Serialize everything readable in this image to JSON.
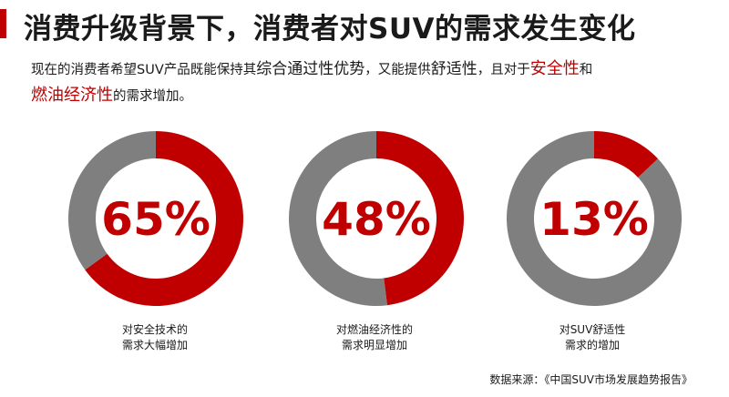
{
  "header": {
    "title": "消费升级背景下，消费者对SUV的需求发生变化"
  },
  "subtitle": {
    "part1": "现在的消费者希望SUV产品既能保持其",
    "part2": "综合通过性优势",
    "part3": "，又能提供",
    "part4": "舒适性",
    "part5": "，且对于",
    "part6": "安全性",
    "part7": "和",
    "part8": "燃油经济性",
    "part9": "的需求增加。"
  },
  "colors": {
    "accent": "#c00000",
    "remainder": "#7f7f7f"
  },
  "chart_data": {
    "type": "pie",
    "variant": "donut",
    "series": [
      {
        "name": "对安全技术的需求大幅增加",
        "label": "65%",
        "value": 65,
        "caption_line1": "对安全技术的",
        "caption_line2": "需求大幅增加"
      },
      {
        "name": "对燃油经济性的需求明显增加",
        "label": "48%",
        "value": 48,
        "caption_line1": "对燃油经济性的",
        "caption_line2": "需求明显增加"
      },
      {
        "name": "对SUV舒适性需求的增加",
        "label": "13%",
        "value": 13,
        "caption_line1": "对SUV舒适性",
        "caption_line2": "需求的增加"
      }
    ]
  },
  "footer": {
    "source": "数据来源：《中国SUV市场发展趋势报告》"
  }
}
